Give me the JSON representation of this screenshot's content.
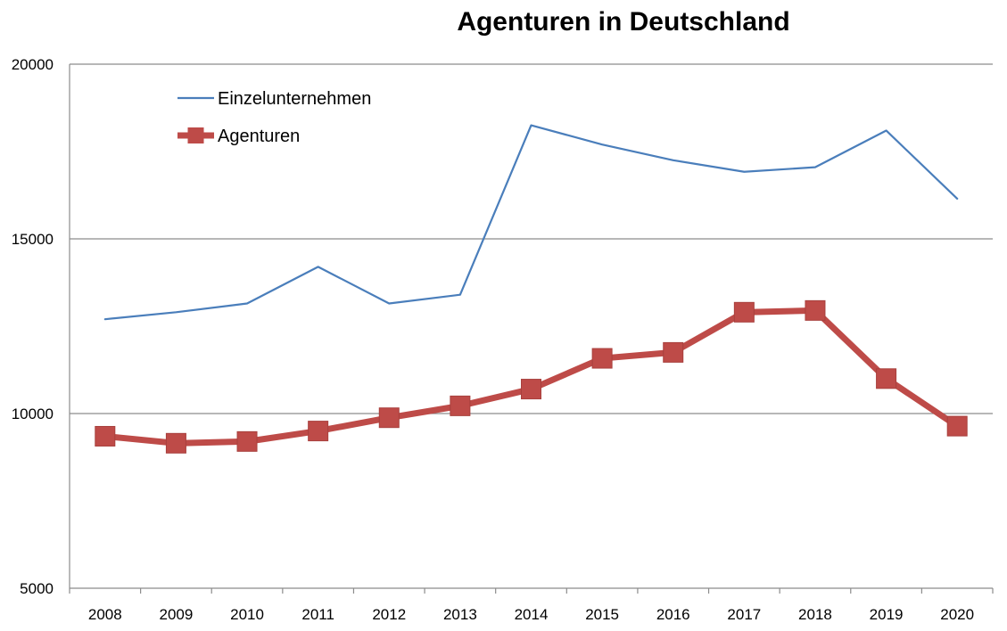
{
  "chart_data": {
    "type": "line",
    "title": "Agenturen in Deutschland",
    "xlabel": "",
    "ylabel": "",
    "categories": [
      "2008",
      "2009",
      "2010",
      "2011",
      "2012",
      "2013",
      "2014",
      "2015",
      "2016",
      "2017",
      "2018",
      "2019",
      "2020"
    ],
    "ylim": [
      5000,
      20000
    ],
    "yticks": [
      "5000",
      "10000",
      "15000",
      "20000"
    ],
    "grid": true,
    "legend_position": "top-left",
    "series": [
      {
        "name": "Einzelunternehmen",
        "color": "#4a7ebb",
        "marker": "none",
        "values": [
          12700,
          12900,
          13150,
          14200,
          13150,
          13400,
          18250,
          17700,
          17250,
          16920,
          17050,
          18100,
          16150
        ]
      },
      {
        "name": "Agenturen",
        "color": "#be4b48",
        "marker": "square",
        "values": [
          9350,
          9150,
          9200,
          9500,
          9880,
          10220,
          10700,
          11580,
          11750,
          12900,
          12950,
          11000,
          9640
        ]
      }
    ]
  }
}
